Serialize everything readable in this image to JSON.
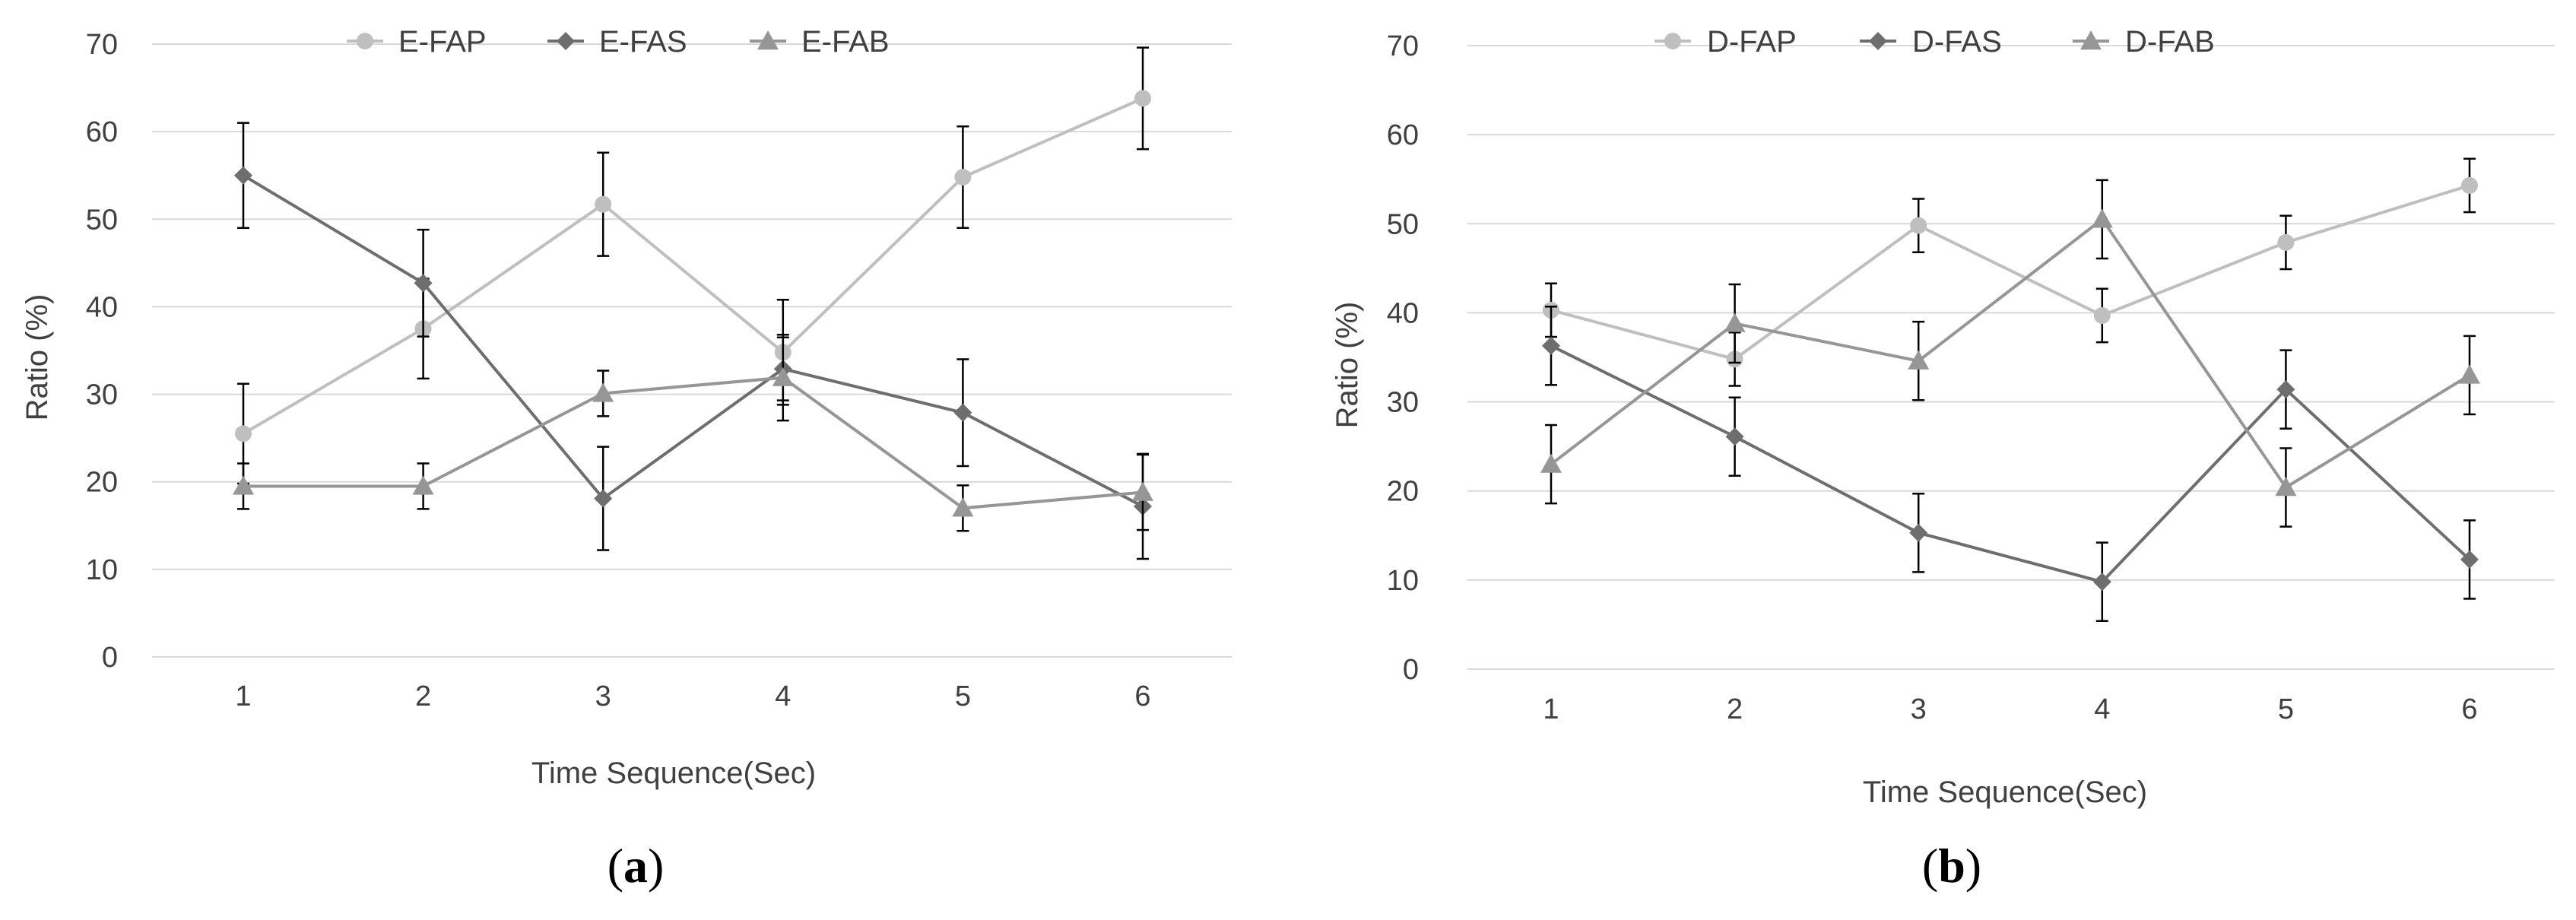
{
  "chart_data": [
    {
      "type": "line",
      "panel_label": "(a)",
      "panel_letter": "a",
      "xlabel": "Time Sequence(Sec)",
      "ylabel": "Ratio (%)",
      "categories": [
        "1",
        "2",
        "3",
        "4",
        "5",
        "6"
      ],
      "ylim": [
        0,
        70
      ],
      "yticks": [
        "0",
        "10",
        "20",
        "30",
        "40",
        "50",
        "60",
        "70"
      ],
      "grid": true,
      "legend_position": "top",
      "series": [
        {
          "name": "E-FAP",
          "marker": "circle",
          "color": "#bfbfbf",
          "values": [
            25.5,
            37.5,
            51.7,
            34.8,
            54.8,
            63.8
          ],
          "errors": [
            5.7,
            5.7,
            5.9,
            6.0,
            5.8,
            5.8
          ]
        },
        {
          "name": "E-FAS",
          "marker": "diamond",
          "color": "#6e6e6e",
          "values": [
            55.0,
            42.7,
            18.1,
            32.9,
            27.9,
            17.2
          ],
          "errors": [
            6.0,
            6.1,
            5.9,
            3.6,
            6.1,
            6.0
          ]
        },
        {
          "name": "E-FAB",
          "marker": "triangle",
          "color": "#969696",
          "values": [
            19.5,
            19.5,
            30.1,
            31.9,
            17.0,
            18.8
          ],
          "errors": [
            2.6,
            2.6,
            2.6,
            4.9,
            2.6,
            4.3
          ]
        }
      ]
    },
    {
      "type": "line",
      "panel_label": "(b)",
      "panel_letter": "b",
      "xlabel": "Time Sequence(Sec)",
      "ylabel": "Ratio (%)",
      "categories": [
        "1",
        "2",
        "3",
        "4",
        "5",
        "6"
      ],
      "ylim": [
        0,
        70
      ],
      "yticks": [
        "0",
        "10",
        "20",
        "30",
        "40",
        "50",
        "60",
        "70"
      ],
      "grid": true,
      "legend_position": "top",
      "series": [
        {
          "name": "D-FAP",
          "marker": "circle",
          "color": "#bfbfbf",
          "values": [
            40.3,
            34.8,
            49.8,
            39.7,
            47.9,
            54.3
          ],
          "errors": [
            3.0,
            3.0,
            3.0,
            3.0,
            3.0,
            3.0
          ]
        },
        {
          "name": "D-FAS",
          "marker": "diamond",
          "color": "#6e6e6e",
          "values": [
            36.3,
            26.1,
            15.3,
            9.8,
            31.4,
            12.3
          ],
          "errors": [
            4.4,
            4.4,
            4.4,
            4.4,
            4.4,
            4.4
          ]
        },
        {
          "name": "D-FAB",
          "marker": "triangle",
          "color": "#969696",
          "values": [
            23.0,
            38.8,
            34.6,
            50.5,
            20.4,
            33.0
          ],
          "errors": [
            4.4,
            4.4,
            4.4,
            4.4,
            4.4,
            4.4
          ]
        }
      ]
    }
  ]
}
